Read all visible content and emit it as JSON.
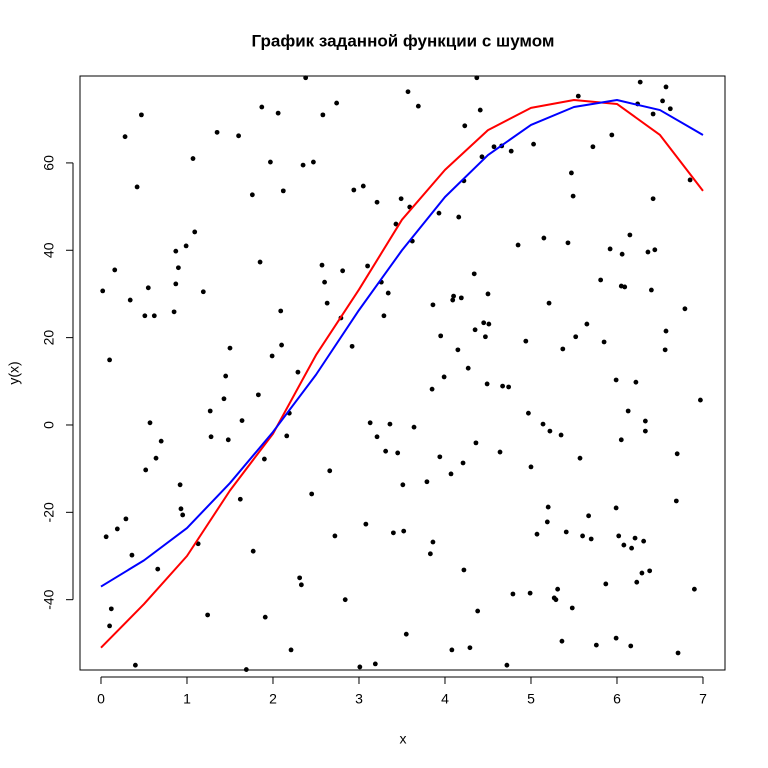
{
  "chart_data": {
    "type": "scatter",
    "title": "График заданной функции с шумом",
    "x_label": "x",
    "y_label": "y(x)",
    "xlim": [
      -0.244,
      7.256
    ],
    "ylim": [
      -56.1,
      79.9
    ],
    "xticks": [
      0,
      1,
      2,
      3,
      4,
      5,
      6,
      7
    ],
    "yticks": [
      -40,
      -20,
      0,
      20,
      40,
      60
    ],
    "series": [
      {
        "type": "scatter",
        "color": "#000000",
        "x": [
          0.02,
          0.06,
          0.1,
          0.12,
          0.1,
          0.16,
          0.19,
          0.28,
          0.29,
          0.34,
          0.36,
          0.4,
          0.42,
          0.47,
          0.51,
          0.52,
          0.55,
          0.57,
          0.62,
          0.64,
          0.66,
          0.7,
          0.85,
          0.87,
          0.87,
          0.9,
          0.92,
          0.93,
          0.95,
          0.99,
          1.07,
          1.09,
          1.13,
          1.19,
          1.24,
          1.27,
          1.28,
          1.35,
          1.43,
          1.45,
          1.48,
          1.5,
          1.6,
          1.62,
          1.64,
          1.69,
          1.76,
          1.77,
          1.83,
          1.85,
          1.87,
          1.9,
          1.91,
          1.97,
          1.99,
          2.06,
          2.09,
          2.1,
          2.12,
          2.16,
          2.19,
          2.21,
          2.29,
          2.31,
          2.33,
          2.35,
          2.38,
          2.47,
          2.45,
          2.57,
          2.58,
          2.6,
          2.63,
          2.66,
          2.72,
          2.74,
          2.79,
          2.81,
          2.84,
          2.92,
          2.94,
          3.01,
          3.05,
          3.08,
          3.1,
          3.13,
          3.19,
          3.21,
          3.21,
          3.26,
          3.29,
          3.31,
          3.34,
          3.36,
          3.4,
          3.43,
          3.45,
          3.49,
          3.51,
          3.52,
          3.55,
          3.57,
          3.59,
          3.62,
          3.64,
          3.69,
          3.79,
          3.83,
          3.85,
          3.86,
          3.86,
          3.93,
          3.94,
          3.95,
          3.99,
          4.07,
          4.08,
          4.09,
          4.1,
          4.15,
          4.16,
          4.19,
          4.21,
          4.22,
          4.22,
          4.23,
          4.27,
          4.29,
          4.34,
          4.35,
          4.36,
          4.37,
          4.38,
          4.41,
          4.43,
          4.45,
          4.47,
          4.49,
          4.5,
          4.51,
          4.57,
          4.64,
          4.66,
          4.67,
          4.72,
          4.74,
          4.77,
          4.79,
          4.85,
          4.94,
          4.97,
          4.99,
          5.0,
          5.03,
          5.07,
          5.14,
          5.15,
          5.19,
          5.2,
          5.21,
          5.22,
          5.27,
          5.29,
          5.31,
          5.35,
          5.36,
          5.37,
          5.41,
          5.43,
          5.47,
          5.48,
          5.49,
          5.52,
          5.55,
          5.57,
          5.6,
          5.65,
          5.67,
          5.7,
          5.72,
          5.76,
          5.81,
          5.85,
          5.87,
          5.92,
          5.94,
          5.99,
          5.99,
          5.99,
          6.02,
          6.05,
          6.05,
          6.06,
          6.08,
          6.09,
          6.13,
          6.15,
          6.16,
          6.17,
          6.21,
          6.22,
          6.23,
          6.24,
          6.27,
          6.29,
          6.31,
          6.33,
          6.33,
          6.36,
          6.38,
          6.4,
          6.42,
          6.42,
          6.44,
          6.53,
          6.56,
          6.57,
          6.57,
          6.62,
          6.69,
          6.7,
          6.71,
          6.79,
          6.85,
          6.9,
          6.97
        ],
        "values": [
          30.7,
          -25.6,
          14.9,
          -42.1,
          -46,
          35.5,
          -23.8,
          66,
          -21.5,
          28.6,
          -29.8,
          -55,
          54.5,
          71,
          25,
          -10.3,
          31.4,
          0.5,
          25,
          -7.6,
          -33,
          -3.7,
          25.9,
          32.3,
          39.8,
          36,
          -13.7,
          -19.2,
          -20.6,
          41,
          61,
          44.2,
          -27.2,
          30.5,
          -43.5,
          3.2,
          -2.7,
          67,
          6,
          11.2,
          -3.4,
          17.6,
          66.2,
          -17,
          1,
          -56,
          52.7,
          -28.9,
          6.9,
          37.3,
          72.8,
          -7.8,
          -44,
          60.2,
          15.8,
          71.4,
          26.1,
          18.3,
          53.6,
          -2.5,
          2.7,
          -51.5,
          12.1,
          -35,
          -36.6,
          59.5,
          79.5,
          60.2,
          -15.8,
          36.6,
          71,
          32.7,
          27.9,
          -10.5,
          -25.4,
          73.7,
          24.5,
          35.3,
          -40,
          18,
          53.8,
          -55.4,
          54.7,
          -22.7,
          36.4,
          0.5,
          -54.7,
          -2.7,
          51,
          32.7,
          25,
          -6,
          30.2,
          0.2,
          -24.7,
          46,
          -6.4,
          51.8,
          -13.7,
          -24.3,
          -47.9,
          76.3,
          49.9,
          42.1,
          -0.5,
          73,
          -13,
          -29.5,
          8.2,
          -26.8,
          27.5,
          48.5,
          -7.3,
          20.4,
          11,
          -11.2,
          -51.5,
          28.6,
          29.5,
          17.2,
          47.6,
          29.1,
          -8.7,
          -33.2,
          55.9,
          68.5,
          13,
          -51,
          34.6,
          21.8,
          -4.1,
          79.5,
          -42.6,
          72.1,
          61.4,
          23.4,
          20.2,
          9.4,
          30,
          23.1,
          63.7,
          -6.2,
          63.9,
          8.9,
          -55,
          8.7,
          62.7,
          -38.7,
          41.2,
          19.2,
          2.7,
          -38.5,
          -9.6,
          64.3,
          -25,
          0.2,
          42.8,
          -22.2,
          -18.8,
          27.9,
          -1.4,
          -39.6,
          -40,
          -37.6,
          -2.3,
          -49.5,
          17.4,
          -24.5,
          41.7,
          57.7,
          -41.9,
          52.4,
          20.2,
          75.3,
          -7.6,
          -25.4,
          23.1,
          -20.8,
          -26.1,
          63.7,
          -50.4,
          33.2,
          19,
          -36.4,
          40.3,
          66.4,
          10.3,
          -19,
          -48.8,
          -25.4,
          31.8,
          -3.4,
          39.1,
          -27.5,
          31.6,
          3.2,
          43.5,
          -50.6,
          -28.2,
          -25.9,
          9.8,
          -36,
          73.5,
          78.5,
          -33.9,
          -26.6,
          0.9,
          -1.4,
          39.6,
          -33.4,
          30.9,
          51.8,
          71.2,
          40.1,
          74.2,
          17.2,
          21.5,
          77.4,
          72.4,
          -17.4,
          -6.6,
          -52.2,
          26.6,
          56.1,
          -37.6,
          5.7
        ]
      },
      {
        "type": "line",
        "color": "#ff0000",
        "x": [
          0,
          0.5,
          1,
          1.5,
          2,
          2.5,
          3,
          3.5,
          4,
          4.5,
          5,
          5.5,
          6,
          6.5,
          7
        ],
        "values": [
          -51,
          -41,
          -30,
          -15,
          -2,
          16,
          31,
          47,
          58.4,
          67.5,
          72.6,
          74.4,
          73.5,
          66.4,
          53.6
        ]
      },
      {
        "type": "line",
        "color": "#0000ff",
        "x": [
          0,
          0.5,
          1,
          1.5,
          2,
          2.5,
          3,
          3.5,
          4,
          4.5,
          5,
          5.5,
          6,
          6.5,
          7
        ],
        "values": [
          -37,
          -31,
          -23.6,
          -13.3,
          -1.6,
          11.5,
          26.3,
          40,
          52.2,
          61.8,
          68.7,
          72.8,
          74.4,
          72.1,
          66.4
        ]
      }
    ]
  }
}
